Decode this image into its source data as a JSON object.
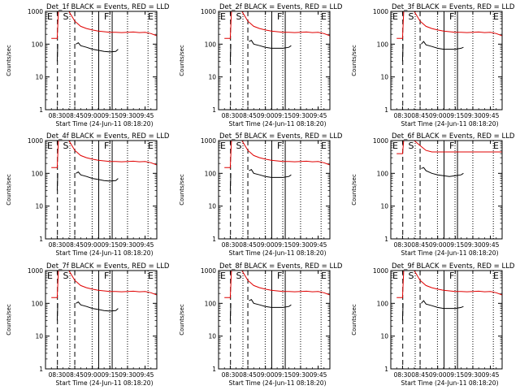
{
  "page": {
    "background": "#ffffff"
  },
  "colors": {
    "events": "#000000",
    "lld": "#e00000",
    "marker": "#000000"
  },
  "chart_data": [
    {
      "type": "line",
      "title": "Det_1f BLACK = Events, RED = LLD",
      "xlabel": "Start Time (24-Jun-11 08:18:20)",
      "ylabel": "Counts/sec",
      "ylog": true,
      "ylim": [
        1,
        1000
      ],
      "xlim": [
        0,
        95
      ],
      "xtick_labels": [
        "08:30",
        "08:45",
        "09:00",
        "09:15",
        "09:30",
        "09:45"
      ],
      "ytick_labels": [
        "1",
        "10",
        "100",
        "1000"
      ],
      "marker_labels": [
        "E",
        "S",
        "F",
        "E"
      ],
      "series": [
        {
          "name": "Events",
          "color": "#000000",
          "x": [
            0,
            10,
            10.5,
            11,
            25,
            26,
            28,
            30,
            35,
            40,
            45,
            50,
            55,
            60,
            62
          ],
          "y": [
            null,
            30,
            100,
            null,
            null,
            100,
            110,
            90,
            80,
            70,
            65,
            60,
            58,
            60,
            70
          ]
        },
        {
          "name": "LLD",
          "color": "#e00000",
          "x": [
            0,
            5,
            10,
            11,
            20,
            25,
            30,
            35,
            40,
            45,
            50,
            55,
            60,
            65,
            70,
            75,
            80,
            85,
            90,
            95
          ],
          "y": [
            null,
            150,
            150,
            1000,
            1000,
            500,
            350,
            300,
            270,
            250,
            240,
            230,
            230,
            225,
            230,
            235,
            225,
            230,
            210,
            180
          ]
        }
      ]
    },
    {
      "type": "line",
      "title": "Det_2f BLACK = Events, RED = LLD",
      "xlabel": "Start Time (24-Jun-11 08:18:20)",
      "ylabel": "Counts/sec",
      "ylog": true,
      "ylim": [
        1,
        1000
      ],
      "xlim": [
        0,
        95
      ],
      "xtick_labels": [
        "08:30",
        "08:45",
        "09:00",
        "09:15",
        "09:30",
        "09:45"
      ],
      "ytick_labels": [
        "1",
        "10",
        "100",
        "1000"
      ],
      "marker_labels": [
        "E",
        "S",
        "F",
        "E"
      ],
      "series": [
        {
          "name": "Events",
          "color": "#000000",
          "x": [
            10,
            10.5,
            25,
            26,
            28,
            30,
            35,
            40,
            45,
            50,
            55,
            60,
            62
          ],
          "y": [
            30,
            100,
            null,
            120,
            130,
            100,
            90,
            80,
            75,
            75,
            75,
            80,
            90
          ]
        },
        {
          "name": "LLD",
          "color": "#e00000",
          "x": [
            5,
            10,
            11,
            20,
            25,
            30,
            35,
            40,
            45,
            50,
            55,
            60,
            65,
            70,
            75,
            80,
            85,
            90,
            95
          ],
          "y": [
            150,
            150,
            1000,
            1000,
            500,
            350,
            300,
            270,
            250,
            240,
            230,
            230,
            225,
            230,
            235,
            225,
            230,
            210,
            180
          ]
        }
      ]
    },
    {
      "type": "line",
      "title": "Det_3f BLACK = Events, RED = LLD",
      "xlabel": "Start Time (24-Jun-11 08:18:20)",
      "ylabel": "Counts/sec",
      "ylog": true,
      "ylim": [
        1,
        1000
      ],
      "xlim": [
        0,
        95
      ],
      "xtick_labels": [
        "08:30",
        "08:45",
        "09:00",
        "09:15",
        "09:30",
        "09:45"
      ],
      "ytick_labels": [
        "1",
        "10",
        "100",
        "1000"
      ],
      "marker_labels": [
        "E",
        "S",
        "F",
        "E"
      ],
      "series": [
        {
          "name": "Events",
          "color": "#000000",
          "x": [
            10,
            10.5,
            25,
            26,
            28,
            30,
            35,
            40,
            45,
            50,
            55,
            60,
            62
          ],
          "y": [
            30,
            100,
            null,
            100,
            120,
            95,
            85,
            75,
            70,
            70,
            70,
            75,
            80
          ]
        },
        {
          "name": "LLD",
          "color": "#e00000",
          "x": [
            5,
            10,
            11,
            20,
            25,
            30,
            35,
            40,
            45,
            50,
            55,
            60,
            65,
            70,
            75,
            80,
            85,
            90,
            95
          ],
          "y": [
            150,
            150,
            1000,
            1000,
            500,
            350,
            300,
            270,
            250,
            240,
            230,
            230,
            225,
            230,
            235,
            225,
            230,
            210,
            180
          ]
        }
      ]
    },
    {
      "type": "line",
      "title": "Det_4f BLACK = Events, RED = LLD",
      "xlabel": "Start Time (24-Jun-11 08:18:20)",
      "ylabel": "Counts/sec",
      "ylog": true,
      "ylim": [
        1,
        1000
      ],
      "xlim": [
        0,
        95
      ],
      "xtick_labels": [
        "08:30",
        "08:45",
        "09:00",
        "09:15",
        "09:30",
        "09:45"
      ],
      "ytick_labels": [
        "1",
        "10",
        "100",
        "1000"
      ],
      "marker_labels": [
        "E",
        "S",
        "F",
        "E"
      ],
      "series": [
        {
          "name": "Events",
          "color": "#000000",
          "x": [
            10,
            10.5,
            25,
            26,
            28,
            30,
            35,
            40,
            45,
            50,
            55,
            60,
            62
          ],
          "y": [
            30,
            100,
            null,
            100,
            110,
            90,
            80,
            70,
            65,
            60,
            58,
            60,
            70
          ]
        },
        {
          "name": "LLD",
          "color": "#e00000",
          "x": [
            5,
            10,
            11,
            20,
            25,
            30,
            35,
            40,
            45,
            50,
            55,
            60,
            65,
            70,
            75,
            80,
            85,
            90,
            95
          ],
          "y": [
            150,
            150,
            1000,
            1000,
            500,
            350,
            300,
            270,
            250,
            240,
            230,
            230,
            225,
            230,
            235,
            225,
            230,
            210,
            180
          ]
        }
      ]
    },
    {
      "type": "line",
      "title": "Det_5f BLACK = Events, RED = LLD",
      "xlabel": "Start Time (24-Jun-11 08:18:20)",
      "ylabel": "Counts/sec",
      "ylog": true,
      "ylim": [
        1,
        1000
      ],
      "xlim": [
        0,
        95
      ],
      "xtick_labels": [
        "08:30",
        "08:45",
        "09:00",
        "09:15",
        "09:30",
        "09:45"
      ],
      "ytick_labels": [
        "1",
        "10",
        "100",
        "1000"
      ],
      "marker_labels": [
        "E",
        "S",
        "F",
        "E"
      ],
      "series": [
        {
          "name": "Events",
          "color": "#000000",
          "x": [
            10,
            10.5,
            25,
            26,
            28,
            30,
            35,
            40,
            45,
            50,
            55,
            60,
            62
          ],
          "y": [
            30,
            100,
            null,
            120,
            130,
            100,
            90,
            80,
            75,
            75,
            75,
            80,
            90
          ]
        },
        {
          "name": "LLD",
          "color": "#e00000",
          "x": [
            5,
            10,
            11,
            20,
            25,
            30,
            35,
            40,
            45,
            50,
            55,
            60,
            65,
            70,
            75,
            80,
            85,
            90,
            95
          ],
          "y": [
            150,
            150,
            1000,
            1000,
            500,
            350,
            300,
            270,
            250,
            240,
            230,
            230,
            225,
            230,
            235,
            225,
            230,
            210,
            180
          ]
        }
      ]
    },
    {
      "type": "line",
      "title": "Det_6f BLACK = Events, RED = LLD",
      "xlabel": "Start Time (24-Jun-11 08:18:20)",
      "ylabel": "Counts/sec",
      "ylog": true,
      "ylim": [
        1,
        1000
      ],
      "xlim": [
        0,
        95
      ],
      "xtick_labels": [
        "08:30",
        "08:45",
        "09:00",
        "09:15",
        "09:30",
        "09:45"
      ],
      "ytick_labels": [
        "1",
        "10",
        "100",
        "1000"
      ],
      "marker_labels": [
        "E",
        "S",
        "F",
        "E"
      ],
      "series": [
        {
          "name": "Events",
          "color": "#000000",
          "x": [
            25,
            26,
            28,
            30,
            35,
            40,
            45,
            50,
            55,
            60,
            62
          ],
          "y": [
            null,
            140,
            150,
            120,
            100,
            90,
            85,
            80,
            85,
            90,
            100
          ]
        },
        {
          "name": "LLD",
          "color": "#e00000",
          "x": [
            0,
            5,
            10,
            11,
            20,
            25,
            30,
            35,
            40,
            45,
            50,
            55,
            60,
            65,
            70,
            75,
            80,
            85,
            90,
            95
          ],
          "y": [
            null,
            400,
            400,
            1000,
            1000,
            700,
            500,
            450,
            450,
            450,
            450,
            450,
            450,
            450,
            450,
            450,
            450,
            450,
            450,
            450
          ]
        }
      ]
    },
    {
      "type": "line",
      "title": "Det_7f BLACK = Events, RED = LLD",
      "xlabel": "Start Time (24-Jun-11 08:18:20)",
      "ylabel": "Counts/sec",
      "ylog": true,
      "ylim": [
        1,
        1000
      ],
      "xlim": [
        0,
        95
      ],
      "xtick_labels": [
        "08:30",
        "08:45",
        "09:00",
        "09:15",
        "09:30",
        "09:45"
      ],
      "ytick_labels": [
        "1",
        "10",
        "100",
        "1000"
      ],
      "marker_labels": [
        "E",
        "S",
        "F",
        "E"
      ],
      "series": [
        {
          "name": "Events",
          "color": "#000000",
          "x": [
            10,
            10.5,
            25,
            26,
            28,
            30,
            35,
            40,
            45,
            50,
            55,
            60,
            62
          ],
          "y": [
            30,
            100,
            null,
            100,
            110,
            90,
            80,
            70,
            65,
            60,
            58,
            60,
            70
          ]
        },
        {
          "name": "LLD",
          "color": "#e00000",
          "x": [
            5,
            10,
            11,
            20,
            25,
            30,
            35,
            40,
            45,
            50,
            55,
            60,
            65,
            70,
            75,
            80,
            85,
            90,
            95
          ],
          "y": [
            150,
            150,
            1000,
            1000,
            500,
            350,
            300,
            270,
            250,
            240,
            230,
            230,
            225,
            230,
            235,
            225,
            230,
            210,
            180
          ]
        }
      ]
    },
    {
      "type": "line",
      "title": "Det_8f BLACK = Events, RED = LLD",
      "xlabel": "Start Time (24-Jun-11 08:18:20)",
      "ylabel": "Counts/sec",
      "ylog": true,
      "ylim": [
        1,
        1000
      ],
      "xlim": [
        0,
        95
      ],
      "xtick_labels": [
        "08:30",
        "08:45",
        "09:00",
        "09:15",
        "09:30",
        "09:45"
      ],
      "ytick_labels": [
        "1",
        "10",
        "100",
        "1000"
      ],
      "marker_labels": [
        "E",
        "S",
        "F",
        "E"
      ],
      "series": [
        {
          "name": "Events",
          "color": "#000000",
          "x": [
            10,
            10.5,
            25,
            26,
            28,
            30,
            35,
            40,
            45,
            50,
            55,
            60,
            62
          ],
          "y": [
            30,
            100,
            null,
            120,
            130,
            100,
            90,
            80,
            75,
            75,
            75,
            80,
            90
          ]
        },
        {
          "name": "LLD",
          "color": "#e00000",
          "x": [
            5,
            10,
            11,
            20,
            25,
            30,
            35,
            40,
            45,
            50,
            55,
            60,
            65,
            70,
            75,
            80,
            85,
            90,
            95
          ],
          "y": [
            150,
            150,
            1000,
            1000,
            500,
            350,
            300,
            270,
            250,
            240,
            230,
            230,
            225,
            230,
            235,
            225,
            230,
            210,
            180
          ]
        }
      ]
    },
    {
      "type": "line",
      "title": "Det_9f BLACK = Events, RED = LLD",
      "xlabel": "Start Time (24-Jun-11 08:18:20)",
      "ylabel": "Counts/sec",
      "ylog": true,
      "ylim": [
        1,
        1000
      ],
      "xlim": [
        0,
        95
      ],
      "xtick_labels": [
        "08:30",
        "08:45",
        "09:00",
        "09:15",
        "09:30",
        "09:45"
      ],
      "ytick_labels": [
        "1",
        "10",
        "100",
        "1000"
      ],
      "marker_labels": [
        "E",
        "S",
        "F",
        "E"
      ],
      "series": [
        {
          "name": "Events",
          "color": "#000000",
          "x": [
            10,
            10.5,
            25,
            26,
            28,
            30,
            35,
            40,
            45,
            50,
            55,
            60,
            62
          ],
          "y": [
            30,
            100,
            null,
            100,
            120,
            95,
            85,
            75,
            70,
            70,
            70,
            75,
            80
          ]
        },
        {
          "name": "LLD",
          "color": "#e00000",
          "x": [
            5,
            10,
            11,
            20,
            25,
            30,
            35,
            40,
            45,
            50,
            55,
            60,
            65,
            70,
            75,
            80,
            85,
            90,
            95
          ],
          "y": [
            150,
            150,
            1000,
            1000,
            500,
            350,
            300,
            270,
            250,
            240,
            230,
            230,
            225,
            230,
            235,
            225,
            230,
            210,
            180
          ]
        }
      ]
    }
  ]
}
